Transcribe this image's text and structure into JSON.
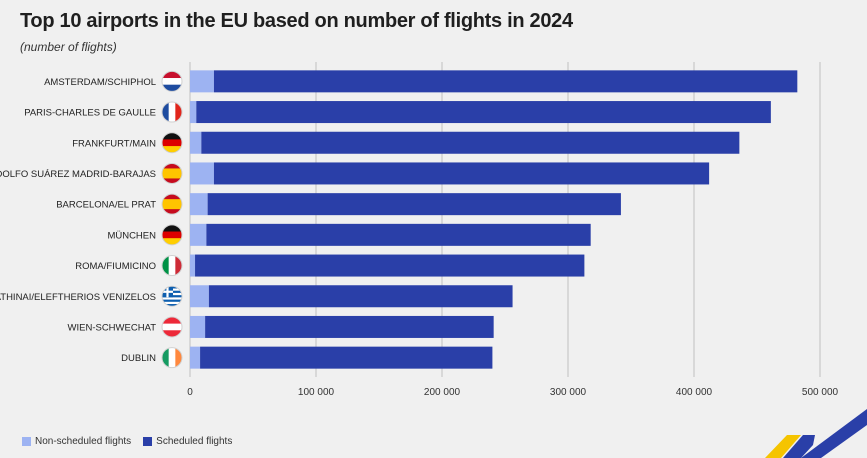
{
  "title": "Top 10 airports in the EU based on number of flights in 2024",
  "subtitle": "(number of flights)",
  "colors": {
    "non_scheduled": "#9db3f2",
    "scheduled": "#2a3fa8",
    "grid": "#bfbfbf",
    "background": "#f0f0f0"
  },
  "legend": {
    "non_scheduled_label": "Non-scheduled flights",
    "scheduled_label": "Scheduled flights"
  },
  "chart_data": {
    "type": "bar",
    "orientation": "horizontal",
    "stacked": true,
    "categories": [
      "AMSTERDAM/SCHIPHOL",
      "PARIS-CHARLES DE GAULLE",
      "FRANKFURT/MAIN",
      "ADOLFO SUÁREZ MADRID-BARAJAS",
      "BARCELONA/EL PRAT",
      "MÜNCHEN",
      "ROMA/FIUMICINO",
      "ATHINAI/ELEFTHERIOS VENIZELOS",
      "WIEN-SCHWECHAT",
      "DUBLIN"
    ],
    "flags": [
      "NL",
      "FR",
      "DE",
      "ES",
      "ES",
      "DE",
      "IT",
      "EL",
      "AT",
      "IE"
    ],
    "series": [
      {
        "name": "Non-scheduled flights",
        "values": [
          19000,
          5000,
          9000,
          19000,
          14000,
          13000,
          4000,
          15000,
          12000,
          8000
        ]
      },
      {
        "name": "Scheduled flights",
        "values": [
          463000,
          456000,
          427000,
          393000,
          328000,
          305000,
          309000,
          241000,
          229000,
          232000
        ]
      }
    ],
    "xlim": [
      0,
      500000
    ],
    "xticks": [
      0,
      100000,
      200000,
      300000,
      400000,
      500000
    ],
    "xtick_labels": [
      "0",
      "100 000",
      "200 000",
      "300 000",
      "400 000",
      "500 000"
    ],
    "grid": true,
    "legend_position": "bottom-left"
  }
}
